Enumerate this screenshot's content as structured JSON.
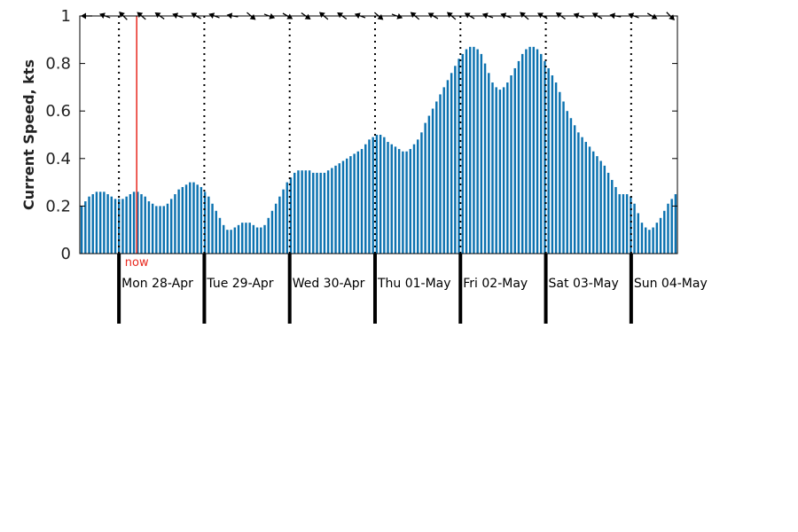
{
  "chart_data": {
    "type": "bar",
    "title": "",
    "ylabel": "Current Speed, kts",
    "xlabel": "",
    "ylim": [
      0,
      1
    ],
    "yticks": [
      "0",
      "0.2",
      "0.4",
      "0.6",
      "0.8",
      "1"
    ],
    "grid": false,
    "bar_color": "#0c72b0",
    "now_color": "#e8281e",
    "now_label": "now",
    "now_position_hours": 16,
    "hours_per_bar": 1,
    "day_hour_span": 168,
    "day_starts_hours": [
      11,
      35,
      59,
      83,
      107,
      131,
      155
    ],
    "days": [
      "Mon 28-Apr",
      "Tue 29-Apr",
      "Wed 30-Apr",
      "Thu 01-May",
      "Fri 02-May",
      "Sat 03-May",
      "Sun 04-May"
    ],
    "values": [
      0.2,
      0.22,
      0.24,
      0.25,
      0.26,
      0.26,
      0.26,
      0.25,
      0.24,
      0.23,
      0.23,
      0.23,
      0.24,
      0.25,
      0.26,
      0.26,
      0.25,
      0.24,
      0.22,
      0.21,
      0.2,
      0.2,
      0.2,
      0.21,
      0.23,
      0.25,
      0.27,
      0.28,
      0.29,
      0.3,
      0.3,
      0.29,
      0.28,
      0.26,
      0.24,
      0.21,
      0.18,
      0.15,
      0.12,
      0.1,
      0.1,
      0.11,
      0.12,
      0.13,
      0.13,
      0.13,
      0.12,
      0.11,
      0.11,
      0.12,
      0.15,
      0.18,
      0.21,
      0.24,
      0.27,
      0.3,
      0.32,
      0.34,
      0.35,
      0.35,
      0.35,
      0.35,
      0.34,
      0.34,
      0.34,
      0.34,
      0.35,
      0.36,
      0.37,
      0.38,
      0.39,
      0.4,
      0.41,
      0.42,
      0.43,
      0.44,
      0.46,
      0.48,
      0.49,
      0.5,
      0.5,
      0.49,
      0.47,
      0.46,
      0.45,
      0.44,
      0.43,
      0.43,
      0.44,
      0.46,
      0.48,
      0.51,
      0.55,
      0.58,
      0.61,
      0.64,
      0.67,
      0.7,
      0.73,
      0.76,
      0.79,
      0.82,
      0.84,
      0.86,
      0.87,
      0.87,
      0.86,
      0.84,
      0.8,
      0.76,
      0.72,
      0.7,
      0.69,
      0.7,
      0.72,
      0.75,
      0.78,
      0.81,
      0.84,
      0.86,
      0.87,
      0.87,
      0.86,
      0.84,
      0.81,
      0.78,
      0.75,
      0.72,
      0.68,
      0.64,
      0.6,
      0.57,
      0.54,
      0.51,
      0.49,
      0.47,
      0.45,
      0.43,
      0.41,
      0.39,
      0.37,
      0.34,
      0.31,
      0.28,
      0.25,
      0.25,
      0.25,
      0.24,
      0.21,
      0.17,
      0.13,
      0.11,
      0.1,
      0.11,
      0.13,
      0.15,
      0.18,
      0.21,
      0.23,
      0.25
    ]
  }
}
